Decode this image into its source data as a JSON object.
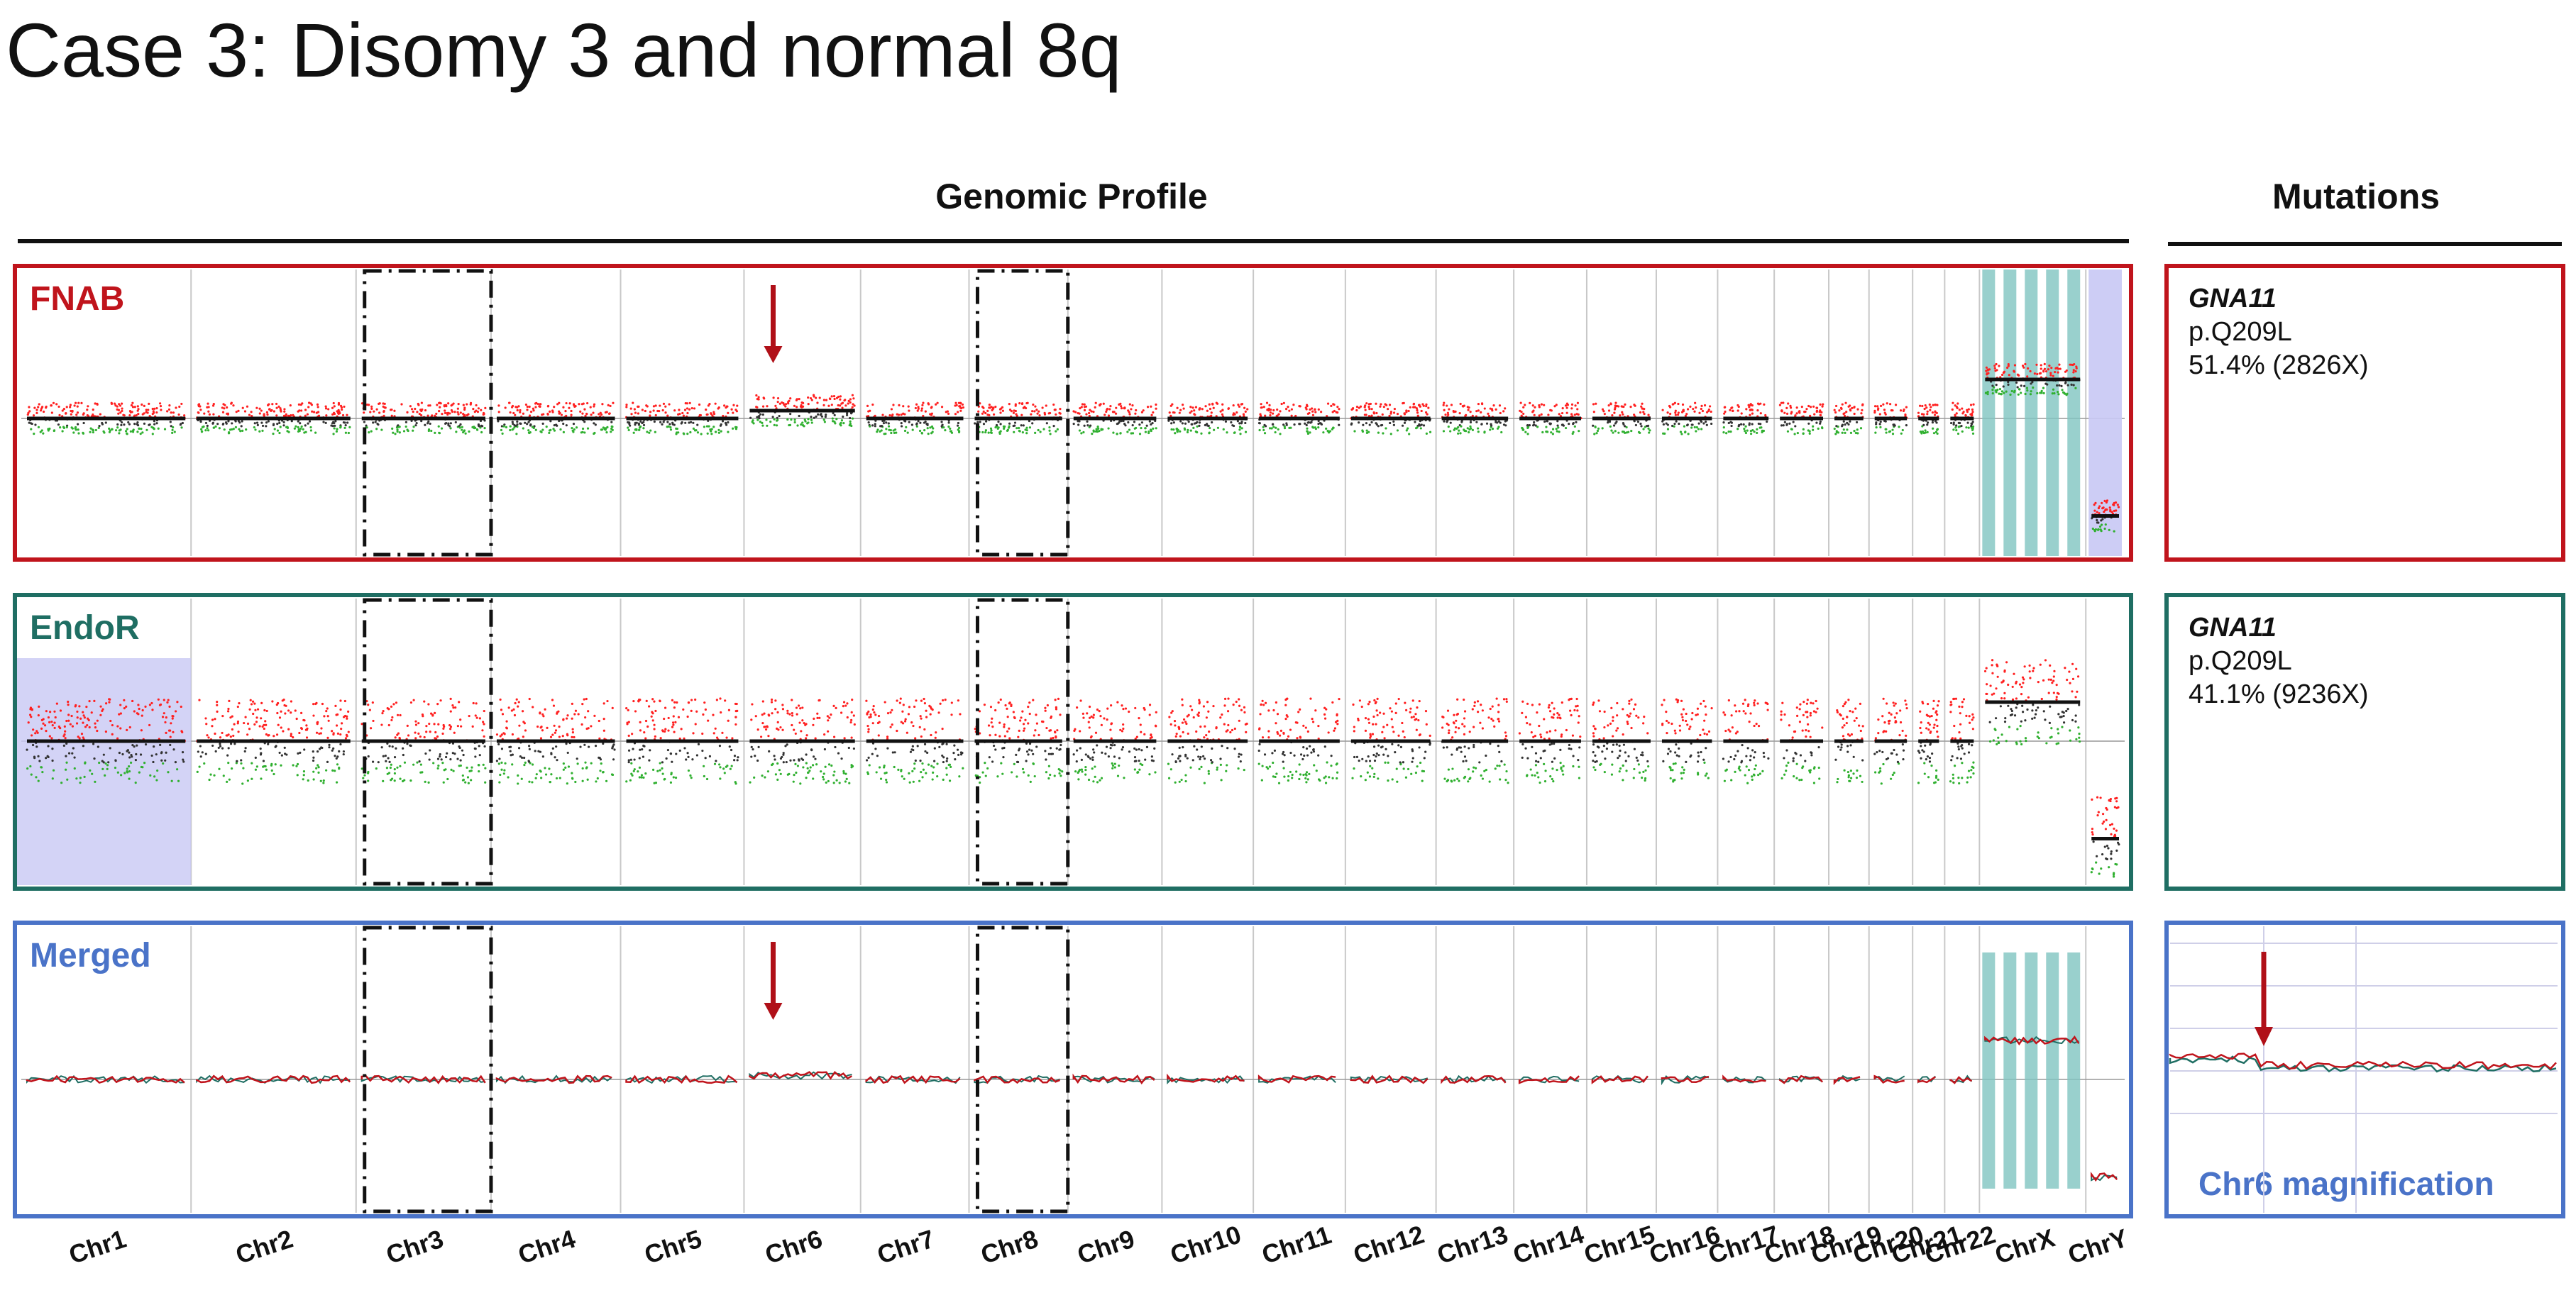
{
  "title": "Case 3: Disomy 3 and normal 8q",
  "headers": {
    "genomic_profile": "Genomic Profile",
    "mutations": "Mutations"
  },
  "colors": {
    "fnab": "#c0141c",
    "endor": "#1f6e63",
    "merged": "#4a73c8",
    "arrow": "#b01018",
    "teal_shade": "#7fc4c0",
    "blue_shade": "#c8c8f4"
  },
  "panels": [
    {
      "id": "fnab",
      "label": "FNAB",
      "mutation": {
        "gene": "GNA11",
        "protein": "p.Q209L",
        "vaf": "51.4% (2826X)"
      }
    },
    {
      "id": "endor",
      "label": "EndoR",
      "mutation": {
        "gene": "GNA11",
        "protein": "p.Q209L",
        "vaf": "41.1% (9236X)"
      }
    },
    {
      "id": "merged",
      "label": "Merged",
      "magnification_label": "Chr6 magnification"
    }
  ],
  "chart_data": {
    "type": "scatter",
    "title": "Genomic Profile",
    "xlabel": "",
    "ylabel": "",
    "categories": [
      "Chr1",
      "Chr2",
      "Chr3",
      "Chr4",
      "Chr5",
      "Chr6",
      "Chr7",
      "Chr8",
      "Chr9",
      "Chr10",
      "Chr11",
      "Chr12",
      "Chr13",
      "Chr14",
      "Chr15",
      "Chr16",
      "Chr17",
      "Chr18",
      "Chr19",
      "Chr20",
      "Chr21",
      "Chr22",
      "ChrX",
      "ChrY"
    ],
    "chromosome_sizes_mb": [
      249,
      242,
      198,
      190,
      181,
      171,
      159,
      145,
      138,
      134,
      135,
      133,
      114,
      107,
      102,
      90,
      83,
      80,
      59,
      64,
      47,
      51,
      156,
      57
    ],
    "highlighted_chromosomes": [
      "Chr3",
      "Chr8"
    ],
    "arrow_chromosome": "Chr6",
    "series": [
      {
        "name": "FNAB",
        "log2_by_chr": [
          0,
          0,
          0,
          0,
          0,
          0.2,
          0,
          0,
          0,
          0,
          0,
          0,
          0,
          0,
          0,
          0,
          0,
          0,
          0,
          0,
          0,
          0,
          1.0,
          -2.5
        ]
      },
      {
        "name": "EndoR",
        "log2_by_chr": [
          0,
          0,
          0,
          0,
          0,
          0,
          0,
          0,
          0,
          0,
          0,
          0,
          0,
          0,
          0,
          0,
          0,
          0,
          0,
          0,
          0,
          0,
          1.0,
          -2.5
        ]
      },
      {
        "name": "Merged",
        "log2_by_chr": [
          0,
          0,
          0,
          0,
          0,
          0.1,
          0,
          0,
          0,
          0,
          0,
          0,
          0,
          0,
          0,
          0,
          0,
          0,
          0,
          0,
          0,
          0,
          1.0,
          -2.5
        ]
      }
    ]
  }
}
